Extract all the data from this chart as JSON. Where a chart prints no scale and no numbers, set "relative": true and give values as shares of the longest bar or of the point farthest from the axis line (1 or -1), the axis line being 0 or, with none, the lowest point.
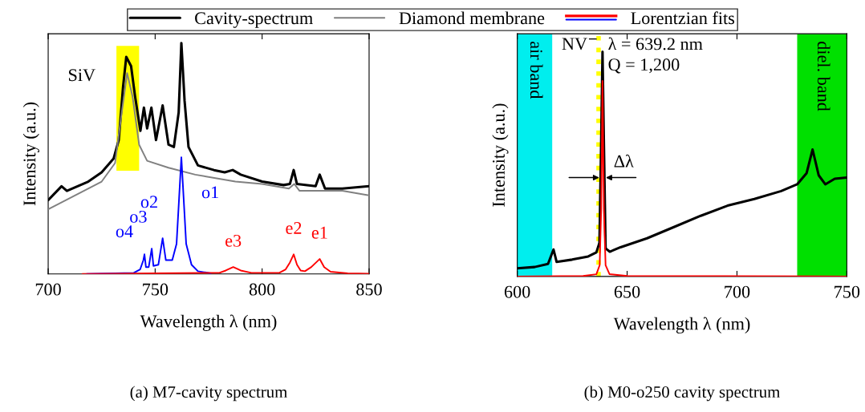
{
  "chart_data": [
    {
      "type": "line",
      "relative": true,
      "xlabel": "Wavelength λ (nm)",
      "ylabel": "Intensity (a.u.)",
      "xlim": [
        700,
        850
      ],
      "xticks": [
        700,
        750,
        800,
        850
      ],
      "legend": "top",
      "grid": false,
      "series": [
        {
          "name": "Cavity-spectrum",
          "color": "#000000",
          "x": [
            700,
            706.25,
            708.75,
            718.75,
            725,
            730.6,
            733,
            735,
            736.5,
            738.75,
            740.6,
            743.1,
            744.75,
            746.25,
            748.25,
            750.4,
            753.5,
            756.25,
            758.75,
            761,
            762.25,
            763.75,
            765.6,
            770,
            777.5,
            782.5,
            786.25,
            790,
            800,
            810,
            813,
            814.75,
            816.25,
            825,
            826.9,
            829.4,
            837.5,
            850
          ],
          "values": [
            0.32,
            0.38,
            0.36,
            0.4,
            0.44,
            0.5,
            0.58,
            0.81,
            0.94,
            0.9,
            0.77,
            0.62,
            0.72,
            0.63,
            0.72,
            0.58,
            0.73,
            0.56,
            0.55,
            0.7,
            1.0,
            0.75,
            0.55,
            0.47,
            0.45,
            0.44,
            0.45,
            0.43,
            0.4,
            0.385,
            0.39,
            0.45,
            0.39,
            0.38,
            0.43,
            0.37,
            0.37,
            0.38
          ]
        },
        {
          "name": "Diamond membrane",
          "color": "#808080",
          "x": [
            700,
            712.5,
            725,
            731.25,
            734.4,
            736.9,
            739.4,
            742.5,
            746.25,
            756.25,
            768.75,
            787.5,
            800,
            812.5,
            815,
            817.5,
            837.5,
            850
          ],
          "values": [
            0.28,
            0.34,
            0.4,
            0.48,
            0.7,
            0.87,
            0.77,
            0.56,
            0.49,
            0.46,
            0.43,
            0.4,
            0.39,
            0.37,
            0.39,
            0.36,
            0.36,
            0.34
          ]
        },
        {
          "name": "Lorentzian fits",
          "color": "#0000ff",
          "x": [
            718,
            740,
            743,
            744.5,
            745,
            745.7,
            747,
            748.4,
            749.2,
            751.5,
            753.5,
            755,
            758,
            760,
            761.2,
            762.25,
            763.3,
            764.5,
            767,
            770,
            776
          ],
          "values": [
            0,
            0.005,
            0.02,
            0.06,
            0.085,
            0.03,
            0.03,
            0.11,
            0.035,
            0.04,
            0.155,
            0.06,
            0.06,
            0.13,
            0.33,
            0.505,
            0.33,
            0.13,
            0.04,
            0.012,
            0.003
          ]
        },
        {
          "color": "#ff0000",
          "x": [
            716,
            780,
            783,
            786.5,
            790,
            795,
            808,
            811,
            813,
            814.75,
            816.3,
            818,
            820,
            823,
            826.9,
            829,
            832,
            840,
            850
          ],
          "values": [
            0,
            0.005,
            0.015,
            0.03,
            0.015,
            0.005,
            0.005,
            0.02,
            0.05,
            0.085,
            0.04,
            0.015,
            0.012,
            0.03,
            0.065,
            0.03,
            0.01,
            0.003,
            0.001
          ]
        }
      ],
      "bands": [
        {
          "axis": "x",
          "from": 731.9,
          "to": 742.5,
          "color": "#ffff00"
        }
      ],
      "annotations": [
        {
          "text": "SiV",
          "x": 736.5,
          "y": 0.94
        },
        {
          "text": "o1",
          "x": 762.25,
          "y": 0.505
        },
        {
          "text": "o2",
          "x": 753.5,
          "y": 0.155
        },
        {
          "text": "o3",
          "x": 748.4,
          "y": 0.11
        },
        {
          "text": "o4",
          "x": 745,
          "y": 0.085
        },
        {
          "text": "e1",
          "x": 826.9,
          "y": 0.065
        },
        {
          "text": "e2",
          "x": 814.75,
          "y": 0.085
        },
        {
          "text": "e3",
          "x": 786.5,
          "y": 0.03
        },
        "(a) M7-cavity spectrum"
      ]
    },
    {
      "type": "line",
      "relative": true,
      "xlabel": "Wavelength λ (nm)",
      "ylabel": "Intensity (a.u.)",
      "xlim": [
        600,
        750
      ],
      "xticks": [
        600,
        650,
        700,
        750
      ],
      "grid": false,
      "series": [
        {
          "color": "#000000",
          "x": [
            600,
            607.9,
            614,
            616.5,
            617.9,
            625,
            632.3,
            636,
            637.4,
            638.2,
            638.8,
            639.4,
            640.2,
            642.1,
            647,
            659.1,
            671.3,
            683.5,
            695.7,
            707.9,
            720.1,
            727.4,
            731.7,
            734.4,
            737.2,
            740.2,
            744.5,
            750
          ],
          "values": [
            0.036,
            0.042,
            0.056,
            0.12,
            0.065,
            0.075,
            0.089,
            0.107,
            0.15,
            0.61,
            1.0,
            0.61,
            0.125,
            0.11,
            0.13,
            0.17,
            0.22,
            0.27,
            0.315,
            0.345,
            0.38,
            0.41,
            0.46,
            0.565,
            0.45,
            0.41,
            0.435,
            0.44
          ]
        },
        {
          "color": "#ff0000",
          "x": [
            600,
            630,
            636,
            637.5,
            638.2,
            638.8,
            639.4,
            640.2,
            642,
            650,
            750
          ],
          "values": [
            0,
            0.002,
            0.01,
            0.05,
            0.3,
            0.87,
            0.3,
            0.05,
            0.01,
            0.002,
            0
          ]
        }
      ],
      "bands": [
        {
          "axis": "x",
          "from": 600,
          "to": 615.9,
          "color": "#00eeee",
          "label": "air band"
        },
        {
          "axis": "x",
          "from": 727.4,
          "to": 750,
          "color": "#00e000",
          "label": "diel. band"
        }
      ],
      "ref_lines": [
        {
          "axis": "x",
          "value": 637,
          "label": "NV$^{−}$",
          "color": "#ffff00",
          "line_style": "dotted"
        }
      ],
      "annotations": [
        "λ = 639.2 nm",
        "Q = 1,200",
        {
          "text": "Δλ",
          "x": 638.8,
          "y": 0.44
        },
        "(b) M0-o250 cavity spectrum"
      ]
    }
  ]
}
